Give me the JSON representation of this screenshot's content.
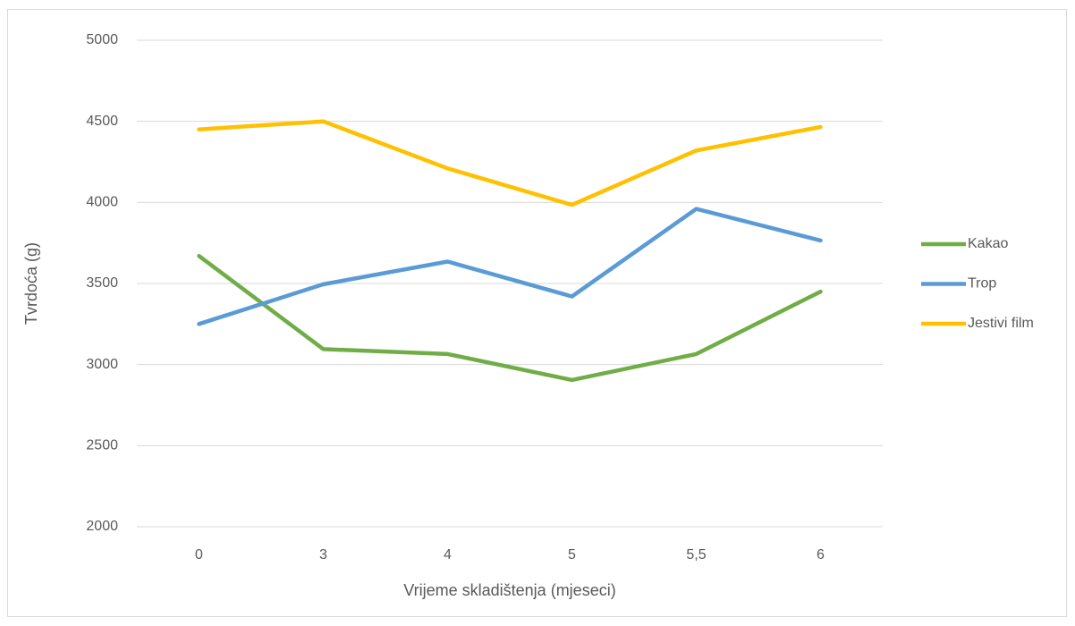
{
  "chart_data": {
    "type": "line",
    "x_label": "Vrijeme skladištenja (mjeseci)",
    "y_label": "Tvrdoća (g)",
    "categories": [
      "0",
      "3",
      "4",
      "5",
      "5,5",
      "6"
    ],
    "series": [
      {
        "name": "Kakao",
        "color": "#70ad47",
        "values": [
          3670,
          3095,
          3065,
          2905,
          3065,
          3450
        ]
      },
      {
        "name": "Trop",
        "color": "#5b9bd5",
        "values": [
          3250,
          3495,
          3635,
          3420,
          3960,
          3765
        ]
      },
      {
        "name": "Jestivi film",
        "color": "#ffc000",
        "values": [
          4450,
          4500,
          4210,
          3985,
          4320,
          4465
        ]
      }
    ],
    "ylim": [
      2000,
      5000
    ],
    "yticks": [
      2000,
      2500,
      3000,
      3500,
      4000,
      4500,
      5000
    ],
    "grid": true,
    "legend": "right"
  }
}
